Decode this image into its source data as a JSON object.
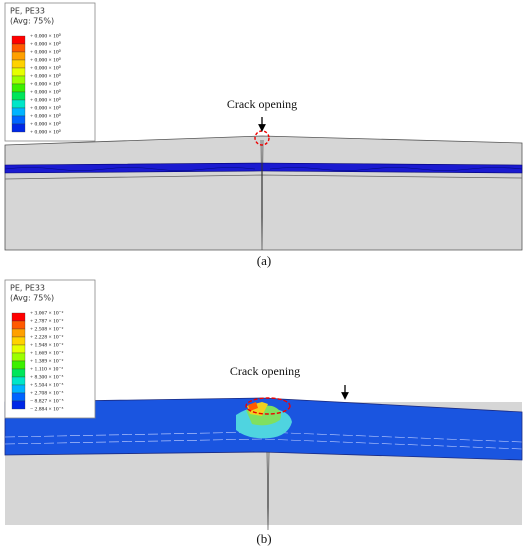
{
  "panels": [
    {
      "legend": {
        "title": "PE, PE33",
        "subtitle": "(Avg: 75%)",
        "labels": [
          "+ 0.000 × 10⁰",
          "+ 0.000 × 10⁰",
          "+ 0.000 × 10⁰",
          "+ 0.000 × 10⁰",
          "+ 0.000 × 10⁰",
          "+ 0.000 × 10⁰",
          "+ 0.000 × 10⁰",
          "+ 0.000 × 10⁰",
          "+ 0.000 × 10⁰",
          "+ 0.000 × 10⁰",
          "+ 0.000 × 10⁰",
          "+ 0.000 × 10⁰",
          "+ 0.000 × 10⁰"
        ]
      },
      "annotation": "Crack opening",
      "caption": "(a)"
    },
    {
      "legend": {
        "title": "PE, PE33",
        "subtitle": "(Avg: 75%)",
        "labels": [
          "+ 3.067 × 10⁻²",
          "+ 2.787 × 10⁻²",
          "+ 2.508 × 10⁻²",
          "+ 2.228 × 10⁻²",
          "+ 1.948 × 10⁻²",
          "+ 1.669 × 10⁻²",
          "+ 1.389 × 10⁻²",
          "+ 1.110 × 10⁻²",
          "+ 8.300 × 10⁻³",
          "+ 5.504 × 10⁻³",
          "+ 2.708 × 10⁻³",
          "− 8.827 × 10⁻⁵",
          "− 2.884 × 10⁻³"
        ]
      },
      "annotation": "Crack opening",
      "caption": "(b)"
    }
  ]
}
